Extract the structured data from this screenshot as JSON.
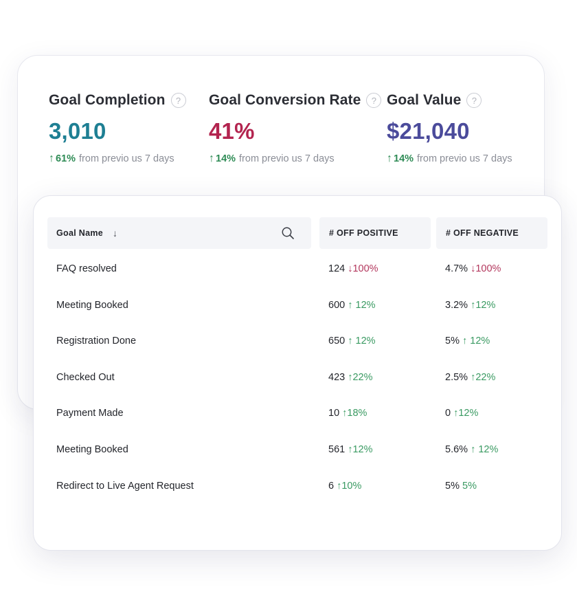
{
  "metrics": [
    {
      "title": "Goal Completion",
      "help": "?",
      "value": "3,010",
      "color": "#1e7f93",
      "change_pct": "61%",
      "change_text": "from previo us 7 days"
    },
    {
      "title": "Goal Conversion Rate",
      "help": "?",
      "value": "41%",
      "color": "#b3244f",
      "change_pct": "14%",
      "change_text": "from previo us 7 days"
    },
    {
      "title": "Goal Value",
      "help": "?",
      "value": "$21,040",
      "color": "#4b4b9b",
      "change_pct": "14%",
      "change_text": "from previo us 7 days"
    }
  ],
  "table": {
    "headers": {
      "name": "Goal Name",
      "positive": "# OFF POSITIVE",
      "negative": "# OFF NEGATIVE"
    },
    "rows": [
      {
        "name": "FAQ resolved",
        "pos_value": "124",
        "pos_change": "↓100%",
        "pos_dir": "down",
        "neg_value": "4.7%",
        "neg_change": "↓100%",
        "neg_dir": "down"
      },
      {
        "name": "Meeting Booked",
        "pos_value": "600",
        "pos_change": "↑ 12%",
        "pos_dir": "up",
        "neg_value": "3.2%",
        "neg_change": " ↑12%",
        "neg_dir": "up"
      },
      {
        "name": "Registration Done",
        "pos_value": "650",
        "pos_change": "↑ 12%",
        "pos_dir": "up",
        "neg_value": "5%",
        "neg_change": "↑ 12%",
        "neg_dir": "up"
      },
      {
        "name": "Checked Out",
        "pos_value": "423",
        "pos_change": "↑22%",
        "pos_dir": "up",
        "neg_value": "2.5%",
        "neg_change": "↑22%",
        "neg_dir": "up"
      },
      {
        "name": "Payment Made",
        "pos_value": "10",
        "pos_change": "↑18%",
        "pos_dir": "up",
        "neg_value": "0",
        "neg_change": "↑12%",
        "neg_dir": "up"
      },
      {
        "name": "Meeting Booked",
        "pos_value": "561",
        "pos_change": "↑12%",
        "pos_dir": "up",
        "neg_value": "5.6%",
        "neg_change": "↑ 12%",
        "neg_dir": "up"
      },
      {
        "name": "Redirect to Live Agent Request",
        "pos_value": "6",
        "pos_change": "↑10%",
        "pos_dir": "up",
        "neg_value": "5%",
        "neg_change": "5%",
        "neg_dir": "up"
      }
    ]
  }
}
